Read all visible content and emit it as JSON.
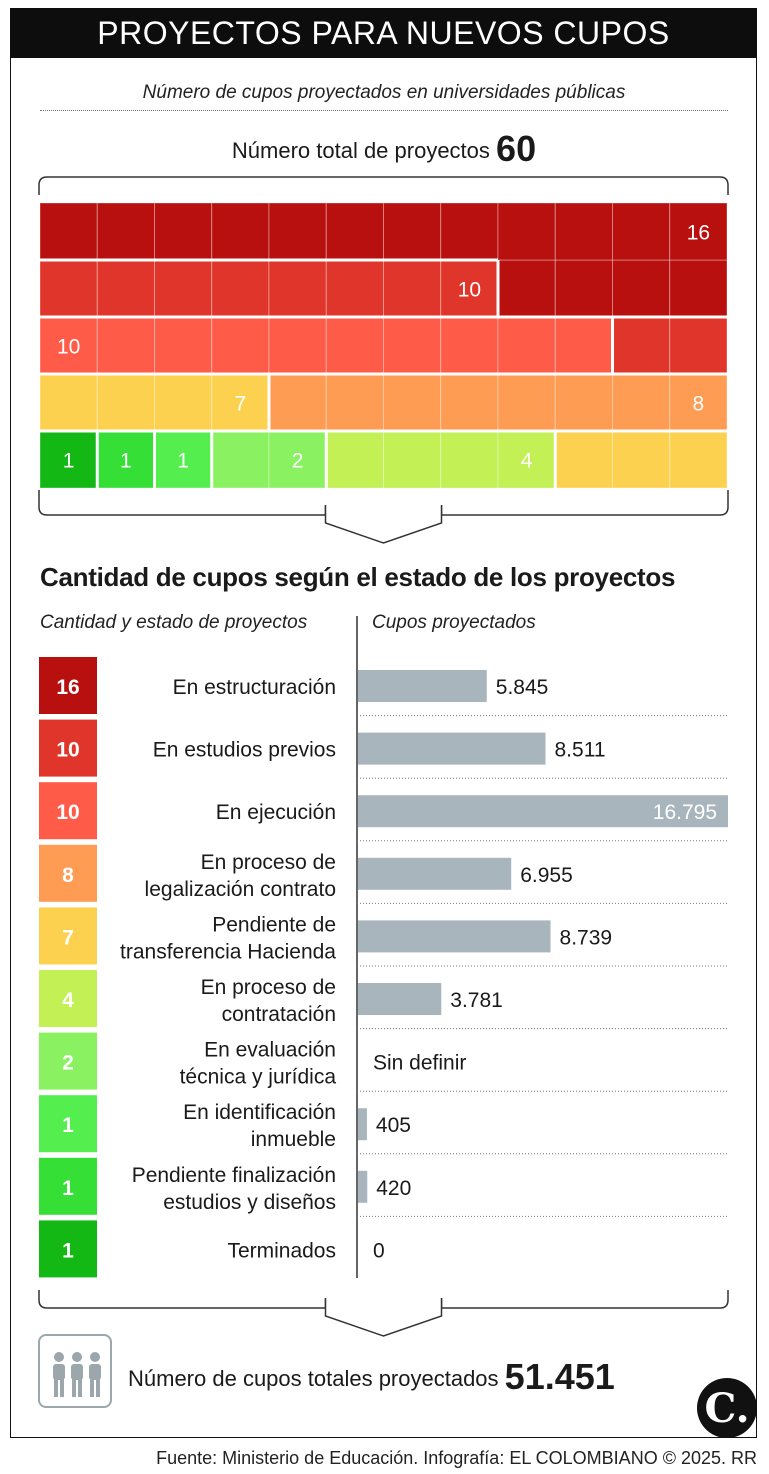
{
  "header": {
    "title": "PROYECTOS PARA NUEVOS CUPOS"
  },
  "subtitle": "Número de cupos proyectados en universidades públicas",
  "total_projects": {
    "label": "Número total de proyectos",
    "value": "60"
  },
  "section_title": "Cantidad de cupos según el estado de los proyectos",
  "column_headers": {
    "left": "Cantidad y estado de proyectos",
    "right": "Cupos proyectados"
  },
  "total_cupos": {
    "label": "Número de cupos totales proyectados",
    "value": "51.451"
  },
  "source": "Fuente: Ministerio de Educación. Infografía: EL COLOMBIANO © 2025. RR",
  "logo_text": "C.",
  "colors": {
    "header_bg": "#0d0d0d",
    "bar": "#a9b5bd",
    "axis": "#333333"
  },
  "chart_data": [
    {
      "type": "waffle",
      "title": "Número total de proyectos",
      "total": 60,
      "grid_columns": 12,
      "grid_rows": 5,
      "fill_order": "bottom-left upward",
      "categories": [
        {
          "status": "Terminados",
          "count": 1,
          "color": "#14b814",
          "label": "1"
        },
        {
          "status": "Pendiente finalización estudios y diseños",
          "count": 1,
          "color": "#36df36",
          "label": "1"
        },
        {
          "status": "En identificación inmueble",
          "count": 1,
          "color": "#55ee4f",
          "label": "1"
        },
        {
          "status": "En evaluación técnica y jurídica",
          "count": 2,
          "color": "#8af260",
          "label": "2"
        },
        {
          "status": "En proceso de contratación",
          "count": 4,
          "color": "#c2f055",
          "label": "4"
        },
        {
          "status": "Pendiente de transferencia Hacienda",
          "count": 7,
          "color": "#fdd150",
          "label": "7"
        },
        {
          "status": "En proceso de legalización contrato",
          "count": 8,
          "color": "#fd9c52",
          "label": "8"
        },
        {
          "status": "En ejecución",
          "count": 10,
          "color": "#fe5b48",
          "label": "10"
        },
        {
          "status": "En estudios previos",
          "count": 10,
          "color": "#e0352a",
          "label": "10"
        },
        {
          "status": "En estructuración",
          "count": 16,
          "color": "#b80f0f",
          "label": "16"
        }
      ]
    },
    {
      "type": "bar",
      "orientation": "horizontal",
      "title": "Cantidad de cupos según el estado de los proyectos",
      "xlim": [
        0,
        16795
      ],
      "rows": [
        {
          "count": 16,
          "status": [
            "En estructuración"
          ],
          "value": 5845,
          "value_label": "5.845",
          "color": "#b80f0f"
        },
        {
          "count": 10,
          "status": [
            "En estudios previos"
          ],
          "value": 8511,
          "value_label": "8.511",
          "color": "#e0352a"
        },
        {
          "count": 10,
          "status": [
            "En ejecución"
          ],
          "value": 16795,
          "value_label": "16.795",
          "color": "#fe5b48"
        },
        {
          "count": 8,
          "status": [
            "En proceso de",
            "legalización contrato"
          ],
          "value": 6955,
          "value_label": "6.955",
          "color": "#fd9c52"
        },
        {
          "count": 7,
          "status": [
            "Pendiente de",
            "transferencia Hacienda"
          ],
          "value": 8739,
          "value_label": "8.739",
          "color": "#fdd150"
        },
        {
          "count": 4,
          "status": [
            "En proceso de",
            "contratación"
          ],
          "value": 3781,
          "value_label": "3.781",
          "color": "#c2f055"
        },
        {
          "count": 2,
          "status": [
            "En evaluación",
            "técnica y jurídica"
          ],
          "value": null,
          "value_label": "Sin definir",
          "color": "#8af260"
        },
        {
          "count": 1,
          "status": [
            "En identificación",
            "inmueble"
          ],
          "value": 405,
          "value_label": "405",
          "color": "#55ee4f"
        },
        {
          "count": 1,
          "status": [
            "Pendiente finalización",
            "estudios y diseños"
          ],
          "value": 420,
          "value_label": "420",
          "color": "#36df36"
        },
        {
          "count": 1,
          "status": [
            "Terminados"
          ],
          "value": 0,
          "value_label": "0",
          "color": "#14b814"
        }
      ]
    }
  ]
}
